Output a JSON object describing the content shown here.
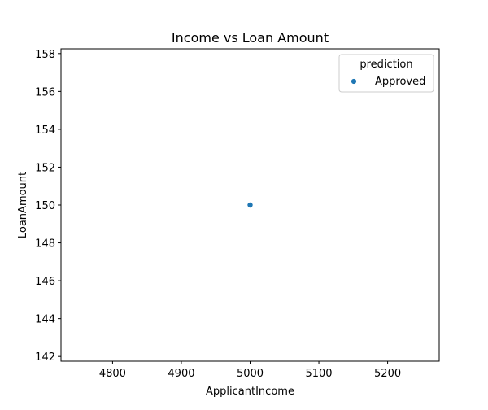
{
  "chart_data": {
    "type": "scatter",
    "title": "Income vs Loan Amount",
    "xlabel": "ApplicantIncome",
    "ylabel": "LoanAmount",
    "xlim": [
      4725,
      5275
    ],
    "ylim": [
      141.75,
      158.25
    ],
    "xticks": [
      4800,
      4900,
      5000,
      5100,
      5200
    ],
    "yticks": [
      142,
      144,
      146,
      148,
      150,
      152,
      154,
      156,
      158
    ],
    "grid": false,
    "legend": {
      "title": "prediction",
      "position": "top-right",
      "entries": [
        {
          "label": "Approved",
          "color": "#1f77b4"
        }
      ]
    },
    "series": [
      {
        "name": "Approved",
        "color": "#1f77b4",
        "points": [
          {
            "x": 5000,
            "y": 150
          }
        ]
      }
    ]
  }
}
